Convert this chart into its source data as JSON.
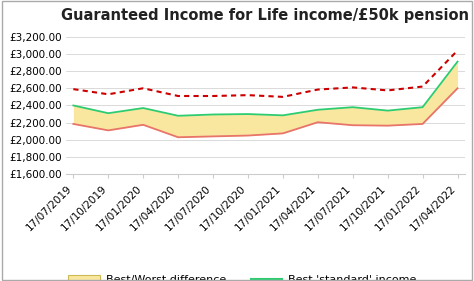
{
  "title": "Guaranteed Income for Life income/£50k pension",
  "x_labels": [
    "17/07/2019",
    "17/10/2019",
    "17/01/2020",
    "17/04/2020",
    "17/07/2020",
    "17/10/2020",
    "17/01/2021",
    "17/04/2021",
    "17/07/2021",
    "17/10/2021",
    "17/01/2022",
    "17/04/2022"
  ],
  "best_standard": [
    2400,
    2310,
    2370,
    2280,
    2295,
    2300,
    2285,
    2350,
    2380,
    2340,
    2380,
    2910
  ],
  "worst_standard": [
    2185,
    2110,
    2175,
    2030,
    2040,
    2050,
    2075,
    2205,
    2170,
    2165,
    2185,
    2600
  ],
  "personalised": [
    2590,
    2530,
    2600,
    2510,
    2510,
    2520,
    2500,
    2585,
    2610,
    2575,
    2620,
    3040
  ],
  "ylim": [
    1600,
    3300
  ],
  "yticks": [
    1600,
    1800,
    2000,
    2200,
    2400,
    2600,
    2800,
    3000,
    3200
  ],
  "color_best": "#2ecc71",
  "color_worst": "#e8746a",
  "color_personalised": "#cc0000",
  "color_fill": "#f9e79f",
  "color_fill_edge": "#e8d87a",
  "background": "#ffffff",
  "grid_color": "#cccccc",
  "title_fontsize": 10.5,
  "tick_fontsize": 7.5,
  "legend_fontsize": 8.0
}
